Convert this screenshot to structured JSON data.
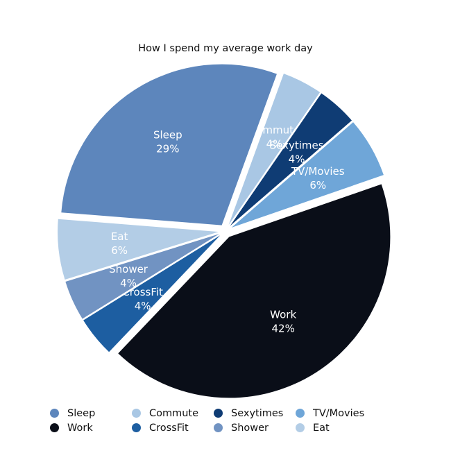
{
  "chart_data": {
    "type": "pie",
    "title": "How I spend my average work day",
    "slices": [
      {
        "label": "Commute",
        "value": 4,
        "value_label": "4%",
        "color": "#a9c7e4"
      },
      {
        "label": "Sexytimes",
        "value": 4,
        "value_label": "4%",
        "color": "#0f3c74"
      },
      {
        "label": "TV/Movies",
        "value": 6,
        "value_label": "6%",
        "color": "#6fa6d8"
      },
      {
        "label": "Work",
        "value": 42,
        "value_label": "42%",
        "color": "#0a0e18"
      },
      {
        "label": "CrossFit",
        "value": 4,
        "value_label": "4%",
        "color": "#1d5ea1"
      },
      {
        "label": "Shower",
        "value": 4,
        "value_label": "4%",
        "color": "#7193c2"
      },
      {
        "label": "Eat",
        "value": 6,
        "value_label": "6%",
        "color": "#b3cde6"
      },
      {
        "label": "Sleep",
        "value": 29,
        "value_label": "29%",
        "color": "#5d86bc"
      }
    ],
    "legend": {
      "placement": "bottom",
      "rows": [
        [
          {
            "label": "Sleep",
            "color": "#5d86bc"
          },
          {
            "label": "Commute",
            "color": "#a9c7e4"
          },
          {
            "label": "Sexytimes",
            "color": "#0f3c74"
          },
          {
            "label": "TV/Movies",
            "color": "#6fa6d8"
          }
        ],
        [
          {
            "label": "Work",
            "color": "#0a0e18"
          },
          {
            "label": "CrossFit",
            "color": "#1d5ea1"
          },
          {
            "label": "Shower",
            "color": "#7193c2"
          },
          {
            "label": "Eat",
            "color": "#b3cde6"
          }
        ]
      ]
    }
  }
}
